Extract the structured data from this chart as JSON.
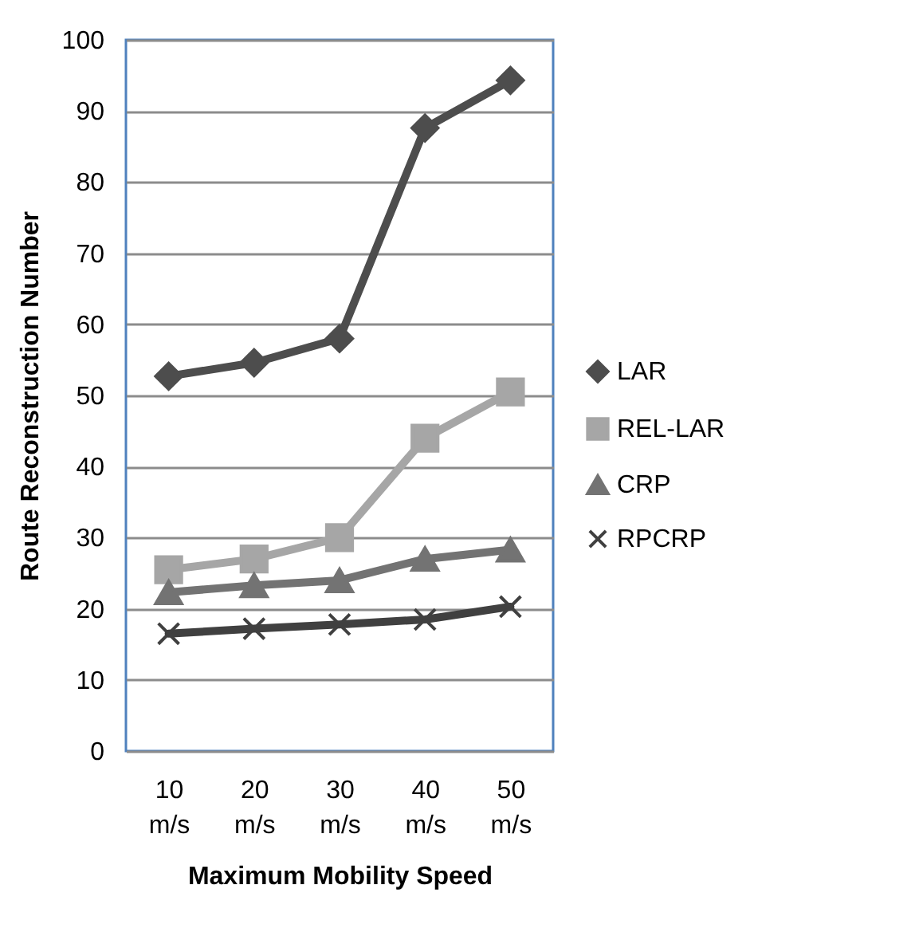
{
  "chart_data": {
    "type": "line",
    "xlabel": "Maximum Mobility Speed",
    "ylabel": "Route Reconstruction Number",
    "categories": [
      "10 m/s",
      "20 m/s",
      "30 m/s",
      "40 m/s",
      "50 m/s"
    ],
    "series": [
      {
        "name": "LAR",
        "color": "#4d4d4d",
        "marker": "diamond",
        "values": [
          52.7,
          54.6,
          58,
          87.6,
          94.3
        ]
      },
      {
        "name": "REL-LAR",
        "color": "#a6a6a6",
        "marker": "square",
        "values": [
          25.5,
          27,
          30,
          44,
          50.5
        ]
      },
      {
        "name": "CRP",
        "color": "#737373",
        "marker": "triangle",
        "values": [
          22.3,
          23.3,
          24,
          27,
          28.3
        ]
      },
      {
        "name": "RPCRP",
        "color": "#404040",
        "marker": "cross",
        "values": [
          16.5,
          17.2,
          17.8,
          18.5,
          20.3
        ]
      }
    ],
    "ylim": [
      0,
      100
    ],
    "yticks": [
      0,
      10,
      20,
      30,
      40,
      50,
      60,
      70,
      80,
      90,
      100
    ],
    "grid": "y",
    "legend": "right",
    "line_style": "solid"
  }
}
